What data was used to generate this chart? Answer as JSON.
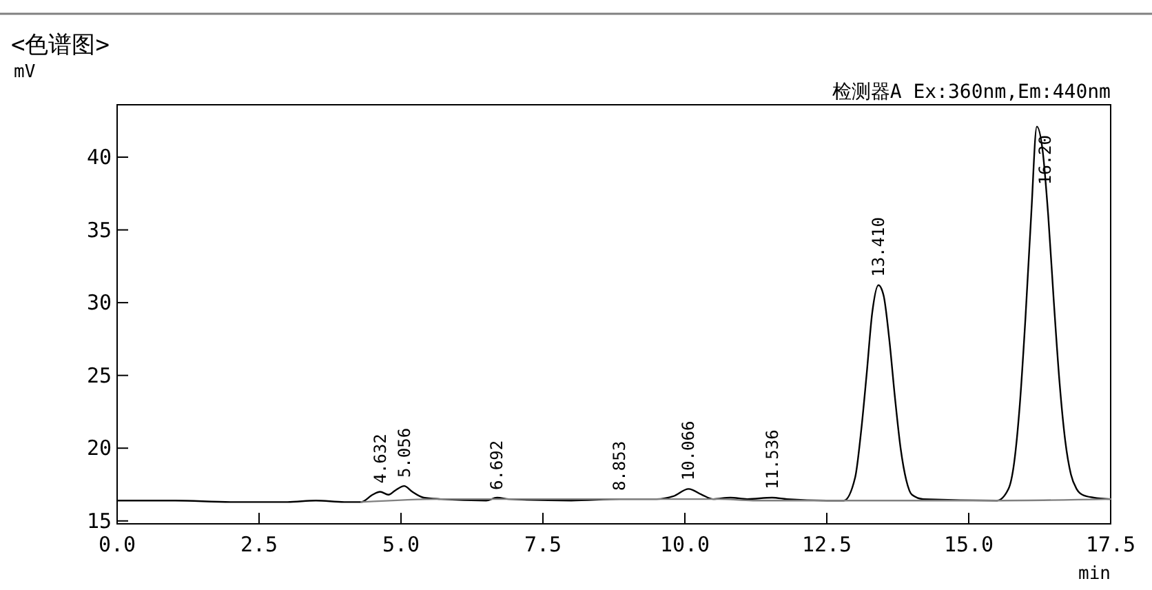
{
  "chart_data": {
    "type": "line",
    "title": "<色谱图>",
    "ylabel": "mV",
    "xlabel": "min",
    "xlim": [
      0,
      17.5
    ],
    "ylim": [
      14.8,
      43.6
    ],
    "xticks": [
      {
        "value": 0,
        "label": "0.0"
      },
      {
        "value": 2.5,
        "label": "2.5"
      },
      {
        "value": 5,
        "label": "5.0"
      },
      {
        "value": 7.5,
        "label": "7.5"
      },
      {
        "value": 10,
        "label": "10.0"
      },
      {
        "value": 12.5,
        "label": "12.5"
      },
      {
        "value": 15,
        "label": "15.0"
      },
      {
        "value": 17.5,
        "label": "17.5"
      }
    ],
    "yticks": [
      15,
      20,
      25,
      30,
      35,
      40
    ],
    "grid": false,
    "marker": "none",
    "line_style": "solid",
    "series": [
      {
        "color": "#000000",
        "x": [
          0,
          1,
          2,
          3,
          3.5,
          4,
          4.3,
          4.5,
          4.632,
          4.78,
          4.9,
          5.056,
          5.2,
          5.4,
          5.7,
          6.5,
          6.692,
          6.9,
          8,
          8.853,
          9.5,
          9.8,
          10.066,
          10.3,
          10.5,
          10.8,
          11.1,
          11.536,
          11.8,
          12.5,
          12.8,
          13,
          13.1,
          13.2,
          13.3,
          13.41,
          13.5,
          13.6,
          13.7,
          13.8,
          13.9,
          14,
          14.2,
          15.5,
          15.7,
          15.8,
          15.9,
          16,
          16.1,
          16.2,
          16.3,
          16.4,
          16.5,
          16.6,
          16.7,
          16.8,
          16.9,
          17,
          17.2,
          17.5
        ],
        "values": [
          16.4,
          16.4,
          16.3,
          16.3,
          16.4,
          16.3,
          16.3,
          16.8,
          17,
          16.8,
          17.1,
          17.4,
          17,
          16.6,
          16.5,
          16.4,
          16.6,
          16.5,
          16.4,
          16.5,
          16.5,
          16.7,
          17.2,
          16.8,
          16.5,
          16.6,
          16.5,
          16.6,
          16.5,
          16.4,
          16.4,
          18,
          21,
          25,
          29.3,
          31.2,
          30.5,
          27.5,
          23.5,
          20,
          17.8,
          16.8,
          16.5,
          16.4,
          17.2,
          19,
          23,
          29,
          36,
          42.1,
          40.5,
          36,
          30,
          24.5,
          20.5,
          18.2,
          17.2,
          16.8,
          16.6,
          16.5
        ]
      },
      {
        "color": "#808080",
        "x": [
          4.3,
          5.7,
          9.6,
          10.6,
          11.2,
          11.9,
          12.8,
          14.2,
          15.5,
          17.5
        ],
        "values": [
          16.3,
          16.5,
          16.5,
          16.5,
          16.4,
          16.4,
          16.4,
          16.4,
          16.4,
          16.5
        ]
      }
    ],
    "annotations": [
      {
        "text": "4.632",
        "x": 4.632,
        "y": 17
      },
      {
        "text": "5.056",
        "x": 5.056,
        "y": 17.4
      },
      {
        "text": "6.692",
        "x": 6.692,
        "y": 16.55
      },
      {
        "text": "8.853",
        "x": 8.853,
        "y": 16.5
      },
      {
        "text": "10.066",
        "x": 10.066,
        "y": 17.2
      },
      {
        "text": "11.536",
        "x": 11.536,
        "y": 16.6
      },
      {
        "text": "13.410",
        "x": 13.41,
        "y": 31.2
      },
      {
        "text": "16.20",
        "x": 16.2,
        "y": 42.1
      },
      "检测器A Ex:360nm,Em:440nm"
    ]
  }
}
